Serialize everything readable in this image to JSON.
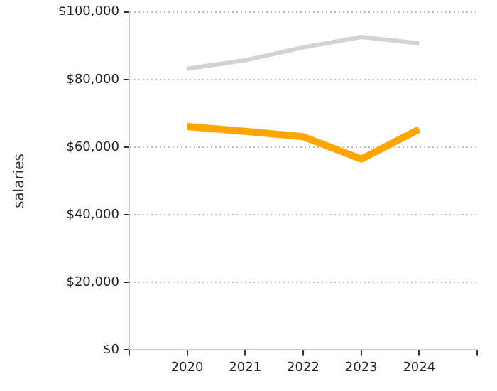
{
  "chart_data": {
    "type": "line",
    "ylabel": "salaries",
    "x": [
      2020,
      2021,
      2022,
      2023,
      2024
    ],
    "series": [
      {
        "color": "#d3d3d3",
        "values": [
          83200,
          85700,
          89500,
          92600,
          90700
        ]
      },
      {
        "color": "#ffa500",
        "values": [
          66100,
          64700,
          63100,
          56500,
          65300
        ]
      }
    ],
    "xlim": [
      2019,
      2025
    ],
    "xticks": [
      {
        "value": 2019,
        "label": null
      },
      2020,
      2021,
      2022,
      2023,
      2024,
      {
        "value": 2025,
        "label": null
      }
    ],
    "ylim": [
      0,
      100000
    ],
    "yticks": [
      {
        "value": 0,
        "label": "$0"
      },
      {
        "value": 20000,
        "label": "$20,000"
      },
      {
        "value": 40000,
        "label": "$40,000"
      },
      {
        "value": 60000,
        "label": "$60,000"
      },
      {
        "value": 80000,
        "label": "$80,000"
      },
      {
        "value": 100000,
        "label": "$100,000"
      }
    ],
    "grid": "y",
    "legend": false,
    "marker": "none",
    "line_style": "solid"
  }
}
